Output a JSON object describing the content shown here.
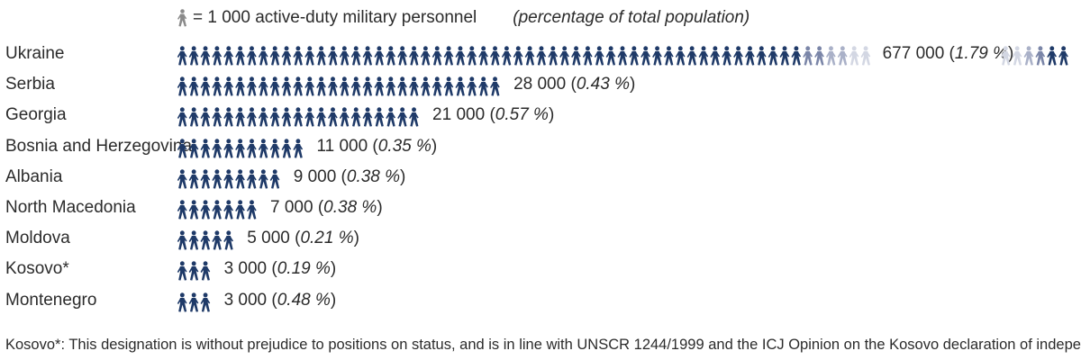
{
  "legend": {
    "unit_text": "= 1 000 active-duty military personnel",
    "pct_note": "(percentage of total population)",
    "icon": "soldier-marching-icon"
  },
  "colors": {
    "primary": "#1f3a68",
    "fade1": "#7b86a8",
    "fade2": "#aab1c8",
    "fade3": "#d3d7e3",
    "legend_icon": "#8a8a8a"
  },
  "chart_data": {
    "type": "pictogram",
    "unit": 1000,
    "categories": [
      "Ukraine",
      "Serbia",
      "Georgia",
      "Bosnia and Herzegovina",
      "Albania",
      "North Macedonia",
      "Moldova",
      "Kosovo*",
      "Montenegro"
    ],
    "values": [
      677000,
      28000,
      21000,
      11000,
      9000,
      7000,
      5000,
      3000,
      3000
    ],
    "percentages": [
      "1.79 %",
      "0.43 %",
      "0.57 %",
      "0.35 %",
      "0.38 %",
      "0.38 %",
      "0.21 %",
      "0.19 %",
      "0.48 %"
    ],
    "value_labels": [
      "677 000",
      "28 000",
      "21 000",
      "11 000",
      "9 000",
      "7 000",
      "5 000",
      "3 000",
      "3 000"
    ]
  },
  "footnote": "Kosovo*: This designation is without prejudice to positions on status, and is in line with UNSCR 1244/1999 and the ICJ Opinion on the Kosovo declaration of independence."
}
